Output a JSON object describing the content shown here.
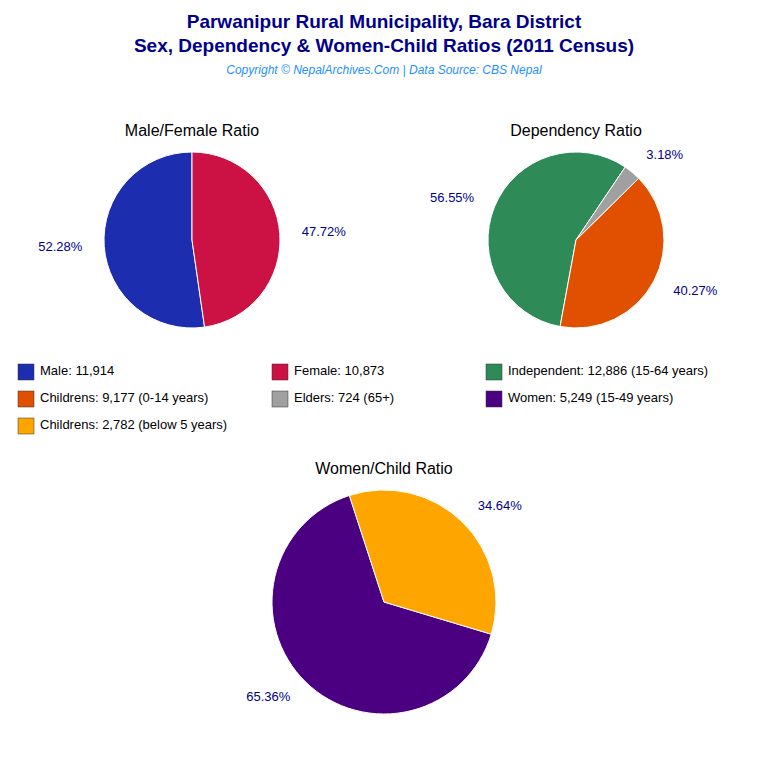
{
  "title": "Parwanipur Rural Municipality, Bara District",
  "subtitle": "Sex, Dependency & Women-Child Ratios (2011 Census)",
  "annotations": [
    "Copyright © NepalArchives.Com | Data Source: CBS Nepal"
  ],
  "chart_data": [
    {
      "type": "pie",
      "title": "Male/Female Ratio",
      "categories": [
        "Male: 11,914",
        "Female: 10,873"
      ],
      "values": [
        52.28,
        47.72
      ],
      "value_labels": [
        "52.28%",
        "47.72%"
      ],
      "colors": [
        "#1C2DB0",
        "#CC1144"
      ],
      "data_labels": true,
      "legend": "center"
    },
    {
      "type": "pie",
      "title": "Dependency Ratio",
      "categories": [
        "Independent: 12,886 (15-64 years)",
        "Childrens: 9,177 (0-14 years)",
        "Elders: 724 (65+)"
      ],
      "values": [
        56.55,
        40.27,
        3.18
      ],
      "value_labels": [
        "56.55%",
        "40.27%",
        "3.18%"
      ],
      "colors": [
        "#2E8B57",
        "#E05000",
        "#A0A0A0"
      ],
      "data_labels": true,
      "legend": "center"
    },
    {
      "type": "pie",
      "title": "Women/Child Ratio",
      "categories": [
        "Women: 5,249 (15-49 years)",
        "Childrens: 2,782 (below 5 years)"
      ],
      "values": [
        65.36,
        34.64
      ],
      "value_labels": [
        "65.36%",
        "34.64%"
      ],
      "colors": [
        "#4B0082",
        "#FFA500"
      ],
      "data_labels": true,
      "legend": "center"
    }
  ]
}
